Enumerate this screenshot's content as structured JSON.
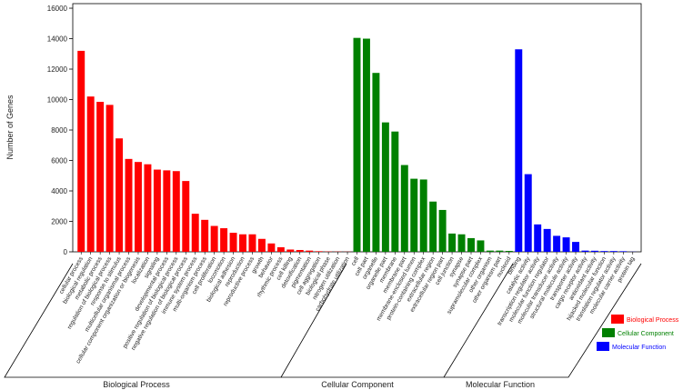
{
  "chart_data": {
    "type": "bar",
    "ylabel": "Number of Genes",
    "ylim": [
      0,
      16300
    ],
    "yticks": [
      0,
      2000,
      4000,
      6000,
      8000,
      10000,
      12000,
      14000,
      16000
    ],
    "series": [
      {
        "name": "Biological Process",
        "color": "#ff0000",
        "categories": [
          "cellular process",
          "biological regulation",
          "metabolic process",
          "regulation of biological process",
          "response to stimulus",
          "multicellular organismal process",
          "cellular component organization or biogenesis",
          "localization",
          "signaling",
          "developmental process",
          "positive regulation of biological process",
          "negative regulation of biological process",
          "immune system process",
          "multi-organism process",
          "cell proliferation",
          "locomotion",
          "biological adhesion",
          "reproduction",
          "reproductive process",
          "growth",
          "behavior",
          "rhythmic process",
          "cell killing",
          "detoxification",
          "pigmentation",
          "cell aggregation",
          "biological phase",
          "nitrogen utilization",
          "carbohydrate utilization"
        ],
        "values": [
          13200,
          10200,
          9850,
          9650,
          7450,
          6100,
          5900,
          5750,
          5400,
          5350,
          5300,
          4650,
          2500,
          2100,
          1700,
          1550,
          1250,
          1150,
          1150,
          850,
          550,
          300,
          150,
          120,
          80,
          40,
          20,
          15,
          10
        ]
      },
      {
        "name": "Cellular Component",
        "color": "#008000",
        "categories": [
          "cell",
          "cell part",
          "organelle",
          "organelle part",
          "membrane",
          "membrane part",
          "membrane-enclosed lumen",
          "protein-containing complex",
          "extracellular region",
          "extracellular region part",
          "cell junction",
          "synapse",
          "synapse part",
          "supramolecular complex",
          "other organism",
          "other organism part",
          "nucleoid"
        ],
        "values": [
          14050,
          14000,
          11750,
          8500,
          7900,
          5700,
          4800,
          4750,
          3300,
          2750,
          1200,
          1150,
          900,
          750,
          80,
          80,
          60
        ]
      },
      {
        "name": "Molecular Function",
        "color": "#0000ff",
        "categories": [
          "binding",
          "catalytic activity",
          "transcription regulator activity",
          "molecular function regulator",
          "molecular transducer activity",
          "structural molecule activity",
          "transporter activity",
          "cargo receptor activity",
          "antioxidant activity",
          "hijacked molecular function",
          "translation regulator activity",
          "molecular carrier activity",
          "protein tag"
        ],
        "values": [
          13300,
          5100,
          1800,
          1500,
          1050,
          950,
          650,
          80,
          70,
          50,
          50,
          40,
          10
        ]
      }
    ]
  }
}
